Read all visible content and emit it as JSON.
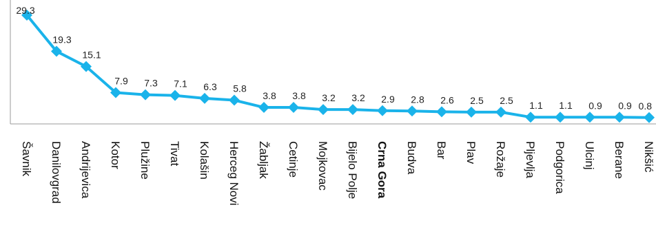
{
  "chart_data": {
    "type": "line",
    "categories": [
      "Šavnik",
      "Danilovgrad",
      "Andrijevica",
      "Kotor",
      "Plužine",
      "Tivat",
      "Kolašin",
      "Herceg Novi",
      "Žabljak",
      "Cetinje",
      "Mojkovac",
      "Bijelo Polje",
      "Crna Gora",
      "Budva",
      "Bar",
      "Plav",
      "Rožaje",
      "Pljevlja",
      "Podgorica",
      "Ulcinj",
      "Berane",
      "Nikšić"
    ],
    "highlighted_category": "Crna Gora",
    "values": [
      29.3,
      19.3,
      15.1,
      7.9,
      7.3,
      7.1,
      6.3,
      5.8,
      3.8,
      3.8,
      3.2,
      3.2,
      2.9,
      2.8,
      2.6,
      2.5,
      2.5,
      1.1,
      1.1,
      0.9,
      0.9,
      0.8
    ],
    "value_labels": [
      "29.3",
      "19.3",
      "15.1",
      "7.9",
      "7.3",
      "7.1",
      "6.3",
      "5.8",
      "3.8",
      "3.8",
      "3.2",
      "3.2",
      "2.9",
      "2.8",
      "2.6",
      "2.5",
      "2.5",
      "1.1",
      "1.1",
      "0.9",
      "0.9",
      "0.8"
    ],
    "ylim": [
      0,
      30
    ],
    "grid": false,
    "colors": {
      "line": "#1ab3ea",
      "marker": "#1ab3ea",
      "axis": "#9a9a9a",
      "text": "#222222"
    }
  }
}
